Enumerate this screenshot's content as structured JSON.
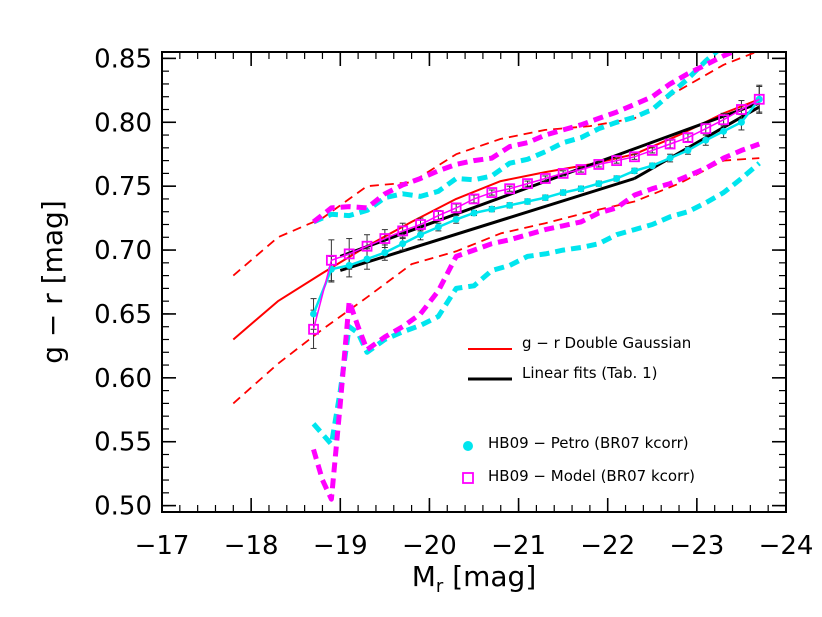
{
  "chart_data": {
    "type": "line",
    "xlabel_main": "M",
    "xlabel_sub": "r",
    "xlabel_unit": " [mag]",
    "ylabel": "g − r [mag]",
    "xlim": [
      -17,
      -24
    ],
    "ylim": [
      0.495,
      0.855
    ],
    "x_ticks": [
      -17,
      -18,
      -19,
      -20,
      -21,
      -22,
      -23,
      -24
    ],
    "x_tick_labels": [
      "−17",
      "−18",
      "−19",
      "−20",
      "−21",
      "−22",
      "−23",
      "−24"
    ],
    "y_ticks": [
      0.5,
      0.55,
      0.6,
      0.65,
      0.7,
      0.75,
      0.8,
      0.85
    ],
    "y_tick_labels": [
      "0.50",
      "0.55",
      "0.60",
      "0.65",
      "0.70",
      "0.75",
      "0.80",
      "0.85"
    ],
    "x_minor_step": 0.2,
    "y_minor_step": 0.01,
    "colors": {
      "red": "#ff0000",
      "black": "#000000",
      "cyan": "#00e5ee",
      "magenta": "#ff00ff"
    },
    "legend": [
      {
        "label": "g − r Double Gaussian",
        "color": "#ff0000",
        "style": "line"
      },
      {
        "label": "Linear fits (Tab. 1)",
        "color": "#000000",
        "style": "thick-line"
      },
      {
        "label": "HB09 − Petro (BR07 kcorr)",
        "color": "#00e5ee",
        "style": "dot"
      },
      {
        "label": "HB09 − Model (BR07 kcorr)",
        "color": "#ff00ff",
        "style": "square"
      }
    ],
    "series": [
      {
        "name": "g − r Double Gaussian",
        "color": "#ff0000",
        "width": 2,
        "dash": "",
        "x": [
          -17.8,
          -18.3,
          -18.8,
          -19.3,
          -19.8,
          -20.3,
          -20.8,
          -21.3,
          -21.8,
          -22.3,
          -22.8,
          -23.3,
          -23.7
        ],
        "y": [
          0.63,
          0.66,
          0.682,
          0.703,
          0.722,
          0.74,
          0.754,
          0.761,
          0.767,
          0.775,
          0.79,
          0.807,
          0.818
        ]
      },
      {
        "name": "",
        "color": "#ff0000",
        "width": 1.8,
        "dash": "9,6",
        "x": [
          -17.8,
          -18.3,
          -18.8,
          -19.3,
          -19.8,
          -20.3,
          -20.8,
          -21.3,
          -21.8,
          -22.3,
          -22.8,
          -23.3,
          -23.7
        ],
        "y": [
          0.68,
          0.71,
          0.725,
          0.75,
          0.753,
          0.775,
          0.787,
          0.794,
          0.797,
          0.803,
          0.825,
          0.845,
          0.856
        ]
      },
      {
        "name": "",
        "color": "#ff0000",
        "width": 1.8,
        "dash": "9,6",
        "x": [
          -17.8,
          -18.3,
          -18.8,
          -19.3,
          -19.8,
          -20.3,
          -20.8,
          -21.3,
          -21.8,
          -22.3,
          -22.8,
          -23.3,
          -23.7
        ],
        "y": [
          0.58,
          0.611,
          0.638,
          0.663,
          0.689,
          0.699,
          0.713,
          0.721,
          0.73,
          0.738,
          0.752,
          0.77,
          0.772
        ]
      },
      {
        "name": "",
        "color": "#00e5ee",
        "width": 5,
        "dash": "10,6",
        "x": [
          -18.7,
          -18.9,
          -19.1,
          -19.3,
          -19.5,
          -19.7,
          -19.9,
          -20.1,
          -20.3,
          -20.5,
          -20.7,
          -20.9,
          -21.1,
          -21.3,
          -21.5,
          -21.7,
          -21.9,
          -22.1,
          -22.3,
          -22.5,
          -22.7,
          -22.9,
          -23.1,
          -23.3,
          -23.5
        ],
        "y": [
          0.722,
          0.728,
          0.727,
          0.731,
          0.741,
          0.744,
          0.742,
          0.746,
          0.756,
          0.755,
          0.758,
          0.768,
          0.771,
          0.777,
          0.784,
          0.788,
          0.795,
          0.8,
          0.804,
          0.81,
          0.822,
          0.834,
          0.848,
          0.86,
          0.87
        ]
      },
      {
        "name": "",
        "color": "#ff00ff",
        "width": 5,
        "dash": "10,6",
        "x": [
          -18.7,
          -18.9,
          -19.1,
          -19.3,
          -19.5,
          -19.7,
          -19.9,
          -20.1,
          -20.3,
          -20.5,
          -20.7,
          -20.9,
          -21.1,
          -21.3,
          -21.5,
          -21.7,
          -21.9,
          -22.1,
          -22.3,
          -22.5,
          -22.7,
          -22.9,
          -23.1,
          -23.3,
          -23.5,
          -23.7
        ],
        "y": [
          0.722,
          0.733,
          0.734,
          0.733,
          0.744,
          0.751,
          0.756,
          0.762,
          0.767,
          0.77,
          0.772,
          0.781,
          0.784,
          0.79,
          0.794,
          0.798,
          0.803,
          0.808,
          0.814,
          0.82,
          0.83,
          0.838,
          0.845,
          0.852,
          0.858,
          0.86
        ]
      },
      {
        "name": "",
        "color": "#00e5ee",
        "width": 5,
        "dash": "10,6",
        "x": [
          -18.7,
          -18.8,
          -18.9,
          -19.0,
          -19.1,
          -19.2,
          -19.3,
          -19.5,
          -19.7,
          -19.9,
          -20.1,
          -20.3,
          -20.5,
          -20.7,
          -20.9,
          -21.1,
          -21.3,
          -21.5,
          -21.7,
          -21.9,
          -22.1,
          -22.3,
          -22.5,
          -22.7,
          -22.9,
          -23.1,
          -23.3,
          -23.5,
          -23.7
        ],
        "y": [
          0.564,
          0.556,
          0.548,
          0.59,
          0.64,
          0.635,
          0.62,
          0.63,
          0.636,
          0.641,
          0.648,
          0.67,
          0.672,
          0.684,
          0.688,
          0.695,
          0.697,
          0.7,
          0.702,
          0.705,
          0.712,
          0.716,
          0.72,
          0.726,
          0.73,
          0.737,
          0.745,
          0.756,
          0.768
        ]
      },
      {
        "name": "",
        "color": "#ff00ff",
        "width": 5,
        "dash": "10,6",
        "x": [
          -18.7,
          -18.8,
          -18.9,
          -19.0,
          -19.1,
          -19.2,
          -19.3,
          -19.5,
          -19.7,
          -19.9,
          -20.1,
          -20.3,
          -20.5,
          -20.7,
          -20.9,
          -21.1,
          -21.3,
          -21.5,
          -21.7,
          -21.9,
          -22.1,
          -22.3,
          -22.5,
          -22.7,
          -22.9,
          -23.1,
          -23.3,
          -23.5,
          -23.7
        ],
        "y": [
          0.544,
          0.52,
          0.505,
          0.58,
          0.66,
          0.64,
          0.622,
          0.632,
          0.64,
          0.65,
          0.668,
          0.695,
          0.7,
          0.705,
          0.708,
          0.712,
          0.716,
          0.719,
          0.722,
          0.729,
          0.733,
          0.743,
          0.748,
          0.752,
          0.758,
          0.764,
          0.772,
          0.778,
          0.783
        ]
      },
      {
        "name": "",
        "color": "#000000",
        "width": 3,
        "dash": "",
        "x": [
          -19.0,
          -22.3
        ],
        "y": [
          0.684,
          0.756
        ]
      },
      {
        "name": "",
        "color": "#000000",
        "width": 3,
        "dash": "",
        "x": [
          -22.3,
          -23.7
        ],
        "y": [
          0.756,
          0.812
        ]
      },
      {
        "name": "",
        "color": "#000000",
        "width": 3,
        "dash": "",
        "x": [
          -19.0,
          -23.7
        ],
        "y": [
          0.695,
          0.815
        ]
      }
    ],
    "petro_points": {
      "name": "HB09 − Petro (BR07 kcorr)",
      "color": "#00e5ee",
      "x": [
        -18.7,
        -18.9,
        -19.1,
        -19.3,
        -19.5,
        -19.7,
        -19.9,
        -20.1,
        -20.3,
        -20.5,
        -20.7,
        -20.9,
        -21.1,
        -21.3,
        -21.5,
        -21.7,
        -21.9,
        -22.1,
        -22.3,
        -22.5,
        -22.7,
        -22.9,
        -23.1,
        -23.3,
        -23.5,
        -23.7
      ],
      "y": [
        0.65,
        0.685,
        0.688,
        0.693,
        0.698,
        0.705,
        0.712,
        0.718,
        0.724,
        0.729,
        0.732,
        0.735,
        0.738,
        0.741,
        0.745,
        0.748,
        0.752,
        0.756,
        0.762,
        0.766,
        0.772,
        0.778,
        0.786,
        0.793,
        0.8,
        0.818
      ],
      "err": [
        0.012,
        0.01,
        0.009,
        0.008,
        0.006,
        0.005,
        0.004,
        0.003,
        0.003,
        0.002,
        0.002,
        0.002,
        0.002,
        0.002,
        0.002,
        0.002,
        0.002,
        0.002,
        0.002,
        0.002,
        0.003,
        0.003,
        0.004,
        0.005,
        0.006,
        0.01
      ]
    },
    "model_points": {
      "name": "HB09 − Model (BR07 kcorr)",
      "color": "#ff00ff",
      "x": [
        -18.7,
        -18.9,
        -19.1,
        -19.3,
        -19.5,
        -19.7,
        -19.9,
        -20.1,
        -20.3,
        -20.5,
        -20.7,
        -20.9,
        -21.1,
        -21.3,
        -21.5,
        -21.7,
        -21.9,
        -22.1,
        -22.3,
        -22.5,
        -22.7,
        -22.9,
        -23.1,
        -23.3,
        -23.5,
        -23.7
      ],
      "y": [
        0.638,
        0.692,
        0.697,
        0.703,
        0.709,
        0.715,
        0.72,
        0.727,
        0.733,
        0.74,
        0.745,
        0.748,
        0.752,
        0.756,
        0.76,
        0.763,
        0.767,
        0.77,
        0.773,
        0.778,
        0.783,
        0.788,
        0.795,
        0.802,
        0.81,
        0.818
      ],
      "err": [
        0.015,
        0.016,
        0.012,
        0.009,
        0.007,
        0.006,
        0.005,
        0.004,
        0.003,
        0.003,
        0.002,
        0.002,
        0.002,
        0.002,
        0.002,
        0.002,
        0.002,
        0.002,
        0.002,
        0.002,
        0.003,
        0.003,
        0.004,
        0.005,
        0.007,
        0.011
      ]
    }
  }
}
